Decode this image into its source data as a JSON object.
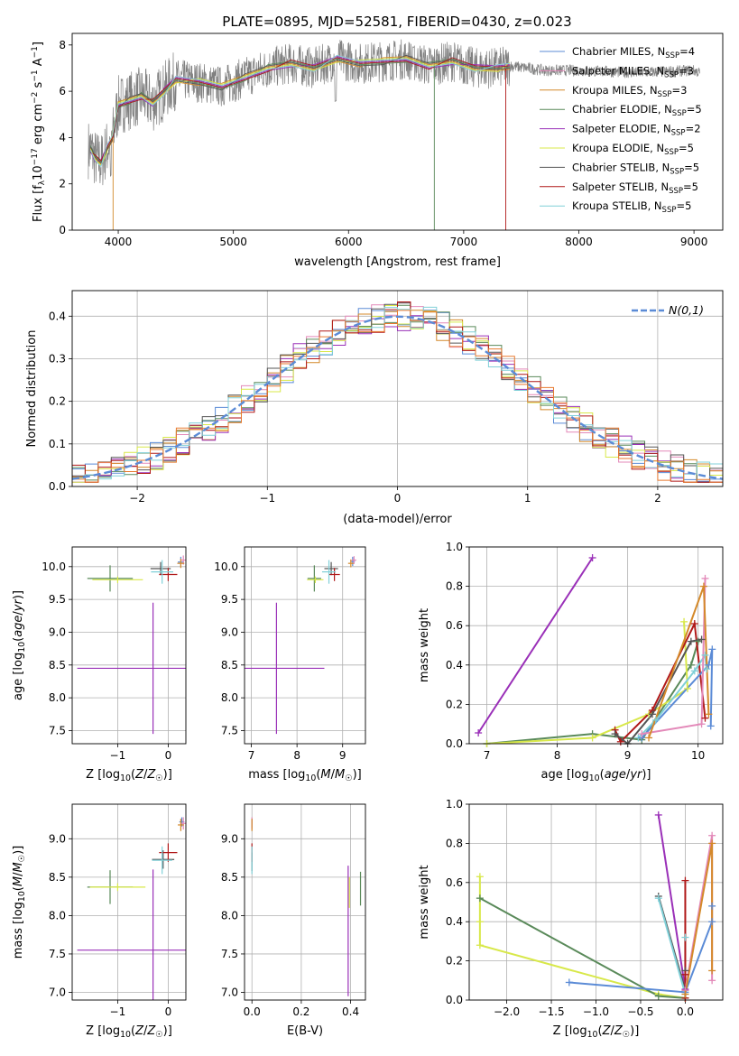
{
  "figure_title": "PLATE=0895, MJD=52581, FIBERID=0430, z=0.023",
  "colors": {
    "Chabrier MILES": "#5b8bd6",
    "Salpeter MILES": "#e389b9",
    "Kroupa MILES": "#d4892a",
    "Chabrier ELODIE": "#5a8a5a",
    "Salpeter ELODIE": "#9a30b8",
    "Kroupa ELODIE": "#d8e84a",
    "Chabrier STELIB": "#555555",
    "Salpeter STELIB": "#b01818",
    "Kroupa STELIB": "#80d0d8",
    "data": "#808080",
    "normal": "#5b8bd6",
    "hist_extra": "#e87a30"
  },
  "chart_data": [
    {
      "type": "line",
      "panel": "spectrum",
      "xlabel": "wavelength [Angstrom, rest frame]",
      "ylabel": "Flux [f_λ 10^-17 erg cm^-2 s^-1 A^-1]",
      "xlim": [
        3600,
        9250
      ],
      "ylim": [
        0,
        8.5
      ],
      "xticks": [
        4000,
        5000,
        6000,
        7000,
        8000,
        9000
      ],
      "yticks": [
        0,
        2,
        4,
        6,
        8
      ],
      "grid": false,
      "legend": "top-right",
      "legend_entries": [
        {
          "name": "Chabrier MILES",
          "nssp": "4"
        },
        {
          "name": "Salpeter MILES",
          "nssp": "3"
        },
        {
          "name": "Kroupa MILES",
          "nssp": "3"
        },
        {
          "name": "Chabrier ELODIE",
          "nssp": "5"
        },
        {
          "name": "Salpeter ELODIE",
          "nssp": "2"
        },
        {
          "name": "Kroupa ELODIE",
          "nssp": "5"
        },
        {
          "name": "Chabrier STELIB",
          "nssp": "5"
        },
        {
          "name": "Salpeter STELIB",
          "nssp": "5"
        },
        {
          "name": "Kroupa STELIB",
          "nssp": "5"
        }
      ],
      "model_continuum": {
        "x": [
          3760,
          3800,
          3850,
          3900,
          3950,
          4000,
          4100,
          4200,
          4300,
          4400,
          4500,
          4700,
          4900,
          5100,
          5300,
          5500,
          5700,
          5900,
          6100,
          6300,
          6500,
          6700,
          6900,
          7100,
          7300,
          7400
        ],
        "y": [
          3.5,
          3.1,
          2.9,
          3.5,
          4.0,
          5.4,
          5.6,
          5.8,
          5.5,
          6.0,
          6.5,
          6.4,
          6.2,
          6.6,
          7.0,
          7.2,
          7.0,
          7.4,
          7.2,
          7.3,
          7.4,
          7.1,
          7.3,
          7.0,
          7.0,
          7.1
        ]
      },
      "data_spectrum_range": [
        3740,
        9050
      ],
      "continuum_ext": {
        "x": [
          7400,
          7700,
          8000,
          8500,
          9000,
          9050
        ],
        "y": [
          7.0,
          6.9,
          6.9,
          6.8,
          6.9,
          6.8
        ]
      }
    },
    {
      "type": "histogram",
      "panel": "residuals",
      "xlabel": "(data-model)/error",
      "ylabel": "Normed distribution",
      "xlim": [
        -2.5,
        2.5
      ],
      "ylim": [
        0,
        0.46
      ],
      "xticks": [
        -2,
        -1,
        0,
        1,
        2
      ],
      "yticks": [
        0.0,
        0.1,
        0.2,
        0.3,
        0.4
      ],
      "grid": true,
      "legend": "top-right",
      "legend_label": "N(0,1)",
      "bin_width": 0.1
    },
    {
      "type": "scatter",
      "panel": "age-Z",
      "xlabel": "Z [log10(Z/Z☉)]",
      "ylabel": "age [log10(age/yr)]",
      "xlim": [
        -1.9,
        0.35
      ],
      "ylim": [
        7.3,
        10.3
      ],
      "xticks": [
        -1,
        0
      ],
      "yticks": [
        7.5,
        8.0,
        8.5,
        9.0,
        9.5,
        10.0
      ],
      "grid": true,
      "points": [
        {
          "s": "Chabrier MILES",
          "x": 0.25,
          "y": 10.07,
          "ex": 0.06,
          "ey": 0.08
        },
        {
          "s": "Salpeter MILES",
          "x": 0.3,
          "y": 10.1,
          "ex": 0.05,
          "ey": 0.07
        },
        {
          "s": "Kroupa MILES",
          "x": 0.25,
          "y": 10.05,
          "ex": 0.07,
          "ey": 0.07
        },
        {
          "s": "Chabrier ELODIE",
          "x": -1.15,
          "y": 9.82,
          "ex": 0.45,
          "ey": 0.2
        },
        {
          "s": "Salpeter ELODIE",
          "x": -0.3,
          "y": 8.45,
          "ex": 1.5,
          "ey": 1.0
        },
        {
          "s": "Kroupa ELODIE",
          "x": -1.0,
          "y": 9.8,
          "ex": 0.5,
          "ey": 0.05
        },
        {
          "s": "Chabrier STELIB",
          "x": -0.15,
          "y": 9.97,
          "ex": 0.2,
          "ey": 0.1
        },
        {
          "s": "Salpeter STELIB",
          "x": 0.0,
          "y": 9.88,
          "ex": 0.18,
          "ey": 0.1
        },
        {
          "s": "Kroupa STELIB",
          "x": -0.12,
          "y": 9.92,
          "ex": 0.22,
          "ey": 0.18
        }
      ]
    },
    {
      "type": "scatter",
      "panel": "age-mass",
      "xlabel": "mass [log10(M/M☉)]",
      "xlim": [
        6.85,
        9.5
      ],
      "ylim": [
        7.3,
        10.3
      ],
      "xticks": [
        7,
        8,
        9
      ],
      "yticks": [
        7.5,
        8.0,
        8.5,
        9.0,
        9.5,
        10.0
      ],
      "grid": true,
      "points": [
        {
          "s": "Chabrier MILES",
          "x": 9.22,
          "y": 10.08,
          "ex": 0.05,
          "ey": 0.07
        },
        {
          "s": "Salpeter MILES",
          "x": 9.25,
          "y": 10.1,
          "ex": 0.05,
          "ey": 0.06
        },
        {
          "s": "Kroupa MILES",
          "x": 9.18,
          "y": 10.05,
          "ex": 0.06,
          "ey": 0.06
        },
        {
          "s": "Chabrier ELODIE",
          "x": 8.38,
          "y": 9.82,
          "ex": 0.15,
          "ey": 0.2
        },
        {
          "s": "Salpeter ELODIE",
          "x": 7.55,
          "y": 8.45,
          "ex": 1.05,
          "ey": 1.0
        },
        {
          "s": "Kroupa ELODIE",
          "x": 8.4,
          "y": 9.8,
          "ex": 0.18,
          "ey": 0.05
        },
        {
          "s": "Chabrier STELIB",
          "x": 8.75,
          "y": 9.97,
          "ex": 0.15,
          "ey": 0.1
        },
        {
          "s": "Salpeter STELIB",
          "x": 8.82,
          "y": 9.88,
          "ex": 0.12,
          "ey": 0.1
        },
        {
          "s": "Kroupa STELIB",
          "x": 8.7,
          "y": 9.92,
          "ex": 0.15,
          "ey": 0.18
        }
      ]
    },
    {
      "type": "line",
      "panel": "massweight-age",
      "xlabel": "age [log10(age/yr)]",
      "ylabel": "mass weight",
      "xlim": [
        6.75,
        10.35
      ],
      "ylim": [
        0,
        1.0
      ],
      "xticks": [
        7,
        8,
        9,
        10
      ],
      "yticks": [
        0.0,
        0.2,
        0.4,
        0.6,
        0.8,
        1.0
      ],
      "grid": true,
      "series": [
        {
          "s": "Salpeter ELODIE",
          "x": [
            6.88,
            8.5
          ],
          "y": [
            0.055,
            0.945
          ]
        },
        {
          "s": "Chabrier ELODIE",
          "x": [
            7.0,
            8.5,
            9.2,
            9.9,
            10.0
          ],
          "y": [
            0.0,
            0.05,
            0.02,
            0.4,
            0.52
          ]
        },
        {
          "s": "Kroupa ELODIE",
          "x": [
            7.0,
            8.5,
            9.3,
            9.85,
            9.8
          ],
          "y": [
            0.0,
            0.03,
            0.15,
            0.28,
            0.62
          ]
        },
        {
          "s": "Salpeter STELIB",
          "x": [
            8.82,
            8.9,
            9.35,
            9.95,
            10.1
          ],
          "y": [
            0.07,
            0.01,
            0.17,
            0.61,
            0.13
          ]
        },
        {
          "s": "Chabrier STELIB",
          "x": [
            8.82,
            9.0,
            9.35,
            9.9,
            10.05
          ],
          "y": [
            0.05,
            0.0,
            0.15,
            0.52,
            0.53
          ]
        },
        {
          "s": "Kroupa STELIB",
          "x": [
            9.15,
            9.4,
            9.95,
            10.1,
            10.12
          ],
          "y": [
            0.03,
            0.12,
            0.37,
            0.45,
            0.38
          ]
        },
        {
          "s": "Chabrier MILES",
          "x": [
            9.2,
            10.15,
            10.2,
            10.18
          ],
          "y": [
            0.03,
            0.4,
            0.48,
            0.09
          ]
        },
        {
          "s": "Salpeter MILES",
          "x": [
            9.2,
            10.05,
            10.1
          ],
          "y": [
            0.05,
            0.1,
            0.84
          ]
        },
        {
          "s": "Kroupa MILES",
          "x": [
            9.3,
            10.08,
            10.15
          ],
          "y": [
            0.03,
            0.8,
            0.15
          ]
        }
      ]
    },
    {
      "type": "scatter",
      "panel": "mass-Z",
      "xlabel": "Z [log10(Z/Z☉)]",
      "ylabel": "mass [log10(M/M☉)]",
      "xlim": [
        -1.9,
        0.35
      ],
      "ylim": [
        6.9,
        9.45
      ],
      "xticks": [
        -1,
        0
      ],
      "yticks": [
        7.0,
        7.5,
        8.0,
        8.5,
        9.0
      ],
      "grid": true,
      "points": [
        {
          "s": "Chabrier MILES",
          "x": 0.27,
          "y": 9.22,
          "ex": 0.05,
          "ey": 0.06
        },
        {
          "s": "Salpeter MILES",
          "x": 0.3,
          "y": 9.2,
          "ex": 0.05,
          "ey": 0.08
        },
        {
          "s": "Kroupa MILES",
          "x": 0.25,
          "y": 9.18,
          "ex": 0.06,
          "ey": 0.08
        },
        {
          "s": "Chabrier ELODIE",
          "x": -1.15,
          "y": 8.37,
          "ex": 0.45,
          "ey": 0.22
        },
        {
          "s": "Salpeter ELODIE",
          "x": -0.3,
          "y": 7.55,
          "ex": 1.5,
          "ey": 1.05
        },
        {
          "s": "Kroupa ELODIE",
          "x": -1.0,
          "y": 8.37,
          "ex": 0.55,
          "ey": 0.05
        },
        {
          "s": "Chabrier STELIB",
          "x": -0.1,
          "y": 8.73,
          "ex": 0.22,
          "ey": 0.12
        },
        {
          "s": "Salpeter STELIB",
          "x": 0.0,
          "y": 8.82,
          "ex": 0.18,
          "ey": 0.12
        },
        {
          "s": "Kroupa STELIB",
          "x": -0.12,
          "y": 8.72,
          "ex": 0.2,
          "ey": 0.18
        }
      ]
    },
    {
      "type": "scatter",
      "panel": "mass-EBV",
      "xlabel": "E(B-V)",
      "xlim": [
        -0.03,
        0.46
      ],
      "ylim": [
        6.9,
        9.45
      ],
      "xticks": [
        0.0,
        0.2,
        0.4
      ],
      "yticks": [
        7.0,
        7.5,
        8.0,
        8.5,
        9.0
      ],
      "grid": true,
      "points": [
        {
          "s": "Chabrier MILES",
          "x": 0.0,
          "y": 9.2,
          "ex": 0.0,
          "ey": 0.06
        },
        {
          "s": "Salpeter MILES",
          "x": 0.0,
          "y": 9.2,
          "ex": 0.0,
          "ey": 0.08
        },
        {
          "s": "Kroupa MILES",
          "x": 0.0,
          "y": 9.18,
          "ex": 0.0,
          "ey": 0.08
        },
        {
          "s": "Chabrier ELODIE",
          "x": 0.44,
          "y": 8.35,
          "ex": 0.0,
          "ey": 0.22
        },
        {
          "s": "Salpeter ELODIE",
          "x": 0.39,
          "y": 7.8,
          "ex": 0.0,
          "ey": 0.85
        },
        {
          "s": "Kroupa ELODIE",
          "x": 0.395,
          "y": 8.3,
          "ex": 0.0,
          "ey": 0.2
        },
        {
          "s": "Chabrier STELIB",
          "x": 0.0,
          "y": 8.7,
          "ex": 0.0,
          "ey": 0.12
        },
        {
          "s": "Salpeter STELIB",
          "x": 0.0,
          "y": 8.82,
          "ex": 0.0,
          "ey": 0.12
        },
        {
          "s": "Kroupa STELIB",
          "x": 0.0,
          "y": 8.72,
          "ex": 0.0,
          "ey": 0.18
        }
      ]
    },
    {
      "type": "line",
      "panel": "massweight-Z",
      "xlabel": "Z [log10(Z/Z☉)]",
      "ylabel": "mass weight",
      "xlim": [
        -2.42,
        0.42
      ],
      "ylim": [
        0,
        1.0
      ],
      "xticks": [
        -2.0,
        -1.5,
        -1.0,
        -0.5,
        0.0
      ],
      "yticks": [
        0.0,
        0.2,
        0.4,
        0.6,
        0.8,
        1.0
      ],
      "grid": true,
      "series": [
        {
          "s": "Kroupa ELODIE",
          "x": [
            -2.3,
            -2.3,
            -2.3,
            -0.3,
            0.0
          ],
          "y": [
            0.63,
            0.4,
            0.28,
            0.03,
            0.01
          ]
        },
        {
          "s": "Chabrier ELODIE",
          "x": [
            -2.3,
            -0.3,
            0.0
          ],
          "y": [
            0.52,
            0.02,
            0.01
          ]
        },
        {
          "s": "Chabrier MILES",
          "x": [
            -1.3,
            0.0,
            0.3,
            0.3
          ],
          "y": [
            0.09,
            0.04,
            0.4,
            0.48
          ]
        },
        {
          "s": "Salpeter ELODIE",
          "x": [
            -0.3,
            0.0
          ],
          "y": [
            0.945,
            0.055
          ]
        },
        {
          "s": "Chabrier STELIB",
          "x": [
            -0.3,
            0.0,
            0.0
          ],
          "y": [
            0.53,
            0.05,
            0.15
          ]
        },
        {
          "s": "Kroupa STELIB",
          "x": [
            -0.3,
            0.0,
            0.0
          ],
          "y": [
            0.52,
            0.03,
            0.32
          ]
        },
        {
          "s": "Salpeter STELIB",
          "x": [
            0.0,
            0.0,
            0.0
          ],
          "y": [
            0.61,
            0.13,
            0.01
          ]
        },
        {
          "s": "Salpeter MILES",
          "x": [
            0.0,
            0.3,
            0.3
          ],
          "y": [
            0.05,
            0.84,
            0.1
          ]
        },
        {
          "s": "Kroupa MILES",
          "x": [
            0.0,
            0.3,
            0.3
          ],
          "y": [
            0.03,
            0.8,
            0.15
          ]
        }
      ]
    }
  ]
}
